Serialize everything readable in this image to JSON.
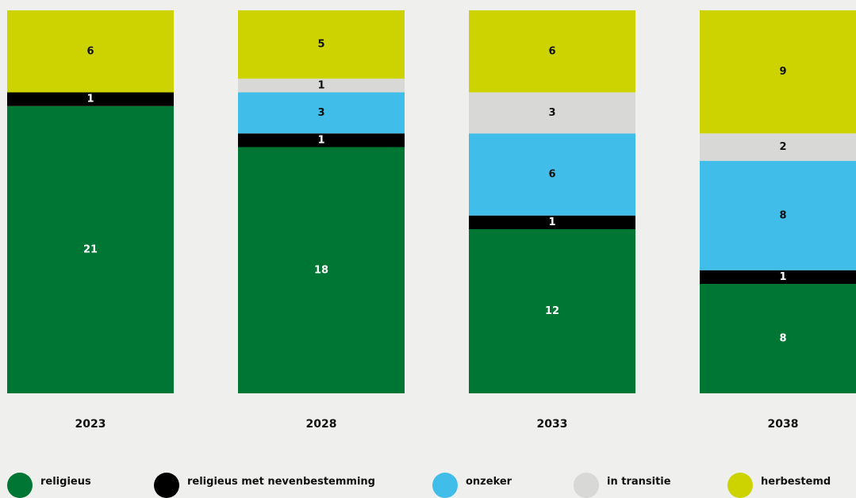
{
  "chart_data": {
    "type": "bar",
    "stacked": true,
    "categories": [
      "2023",
      "2028",
      "2033",
      "2038"
    ],
    "series": [
      {
        "name": "religieus",
        "color": "#007634",
        "values": [
          21,
          18,
          12,
          8
        ],
        "labels": [
          "21",
          "18",
          "12",
          "8"
        ]
      },
      {
        "name": "religieus met nevenbestemming",
        "color": "#000000",
        "values": [
          1,
          1,
          1,
          1
        ],
        "labels": [
          "1",
          "1",
          "1",
          "1"
        ]
      },
      {
        "name": "onzeker",
        "color": "#41bde9",
        "values": [
          0,
          3,
          6,
          8
        ],
        "labels": [
          "",
          "3",
          "6",
          "8"
        ]
      },
      {
        "name": "in transitie",
        "color": "#d8d8d6",
        "values": [
          0,
          1,
          3,
          2
        ],
        "labels": [
          "",
          "1",
          "3",
          "2"
        ]
      },
      {
        "name": "herbestemd",
        "color": "#ccd300",
        "values": [
          6,
          5,
          6,
          9
        ],
        "labels": [
          "6",
          "5",
          "6",
          "9"
        ]
      }
    ],
    "total": 28,
    "legend_position": "bottom",
    "grid": false
  }
}
